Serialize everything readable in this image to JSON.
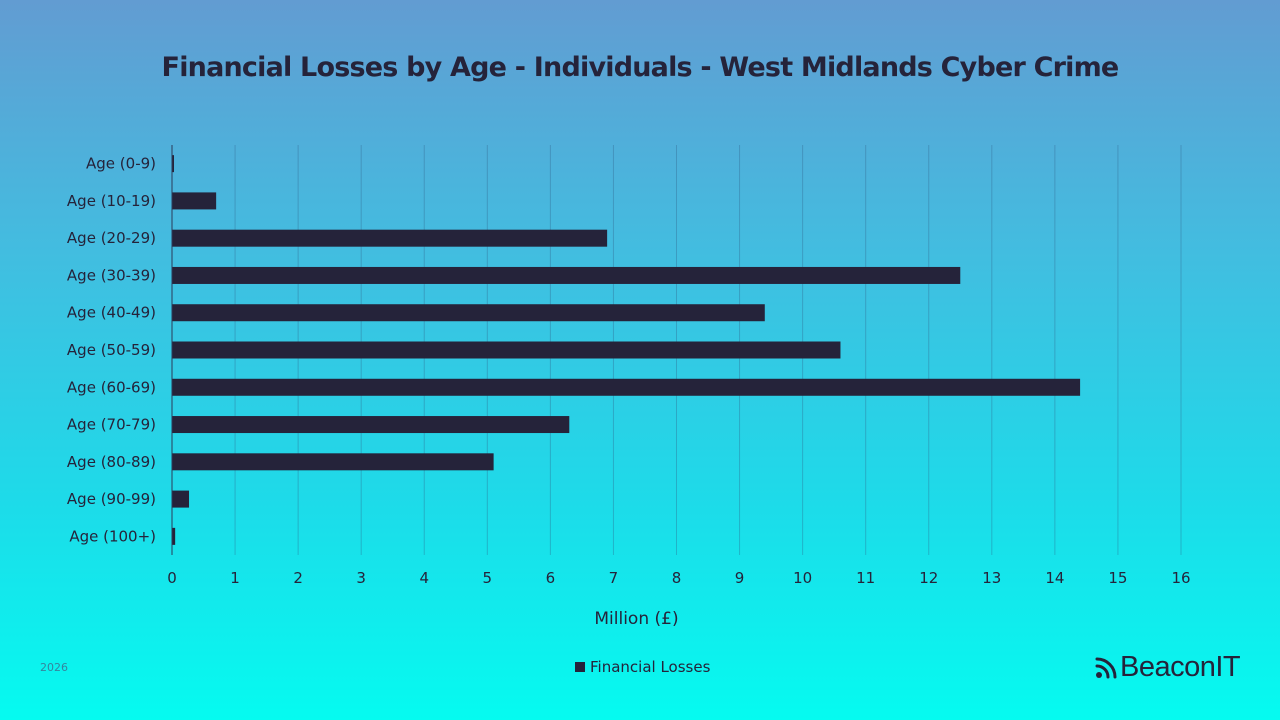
{
  "chart_data": {
    "type": "bar",
    "orientation": "horizontal",
    "title": "Financial Losses by Age - Individuals - West Midlands Cyber Crime",
    "xlabel": "Million (£)",
    "ylabel": "",
    "categories": [
      "Age (0-9)",
      "Age (10-19)",
      "Age (20-29)",
      "Age (30-39)",
      "Age (40-49)",
      "Age (50-59)",
      "Age (60-69)",
      "Age (70-79)",
      "Age (80-89)",
      "Age (90-99)",
      "Age (100+)"
    ],
    "series": [
      {
        "name": "Financial Losses",
        "values": [
          0.03,
          0.7,
          6.9,
          12.5,
          9.4,
          10.6,
          14.4,
          6.3,
          5.1,
          0.27,
          0.05
        ],
        "color": "#25233a"
      }
    ],
    "xlim": [
      0,
      16
    ],
    "xticks": [
      "0",
      "1",
      "2",
      "3",
      "4",
      "5",
      "6",
      "7",
      "8",
      "9",
      "10",
      "11",
      "12",
      "13",
      "14",
      "15",
      "16"
    ],
    "grid": "vertical",
    "legend_position": "bottom"
  },
  "footer": {
    "year": "2026",
    "brand": "BeaconIT",
    "brand_icon": "rss-icon"
  }
}
